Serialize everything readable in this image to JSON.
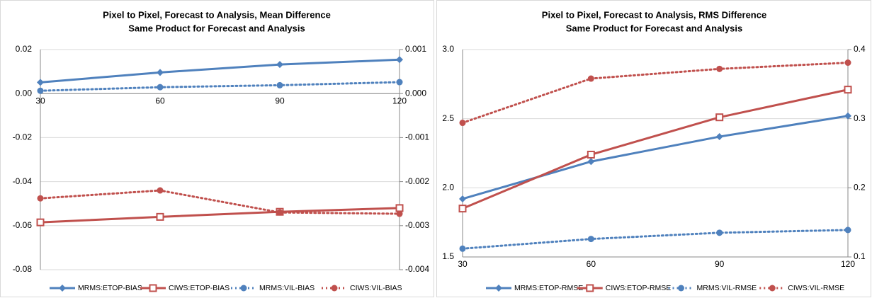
{
  "chart_data": [
    {
      "type": "line",
      "title": "Pixel to Pixel, Forecast to Analysis, Mean Difference",
      "subtitle": "Same Product for Forecast and Analysis",
      "categories": [
        "30",
        "60",
        "90",
        "120"
      ],
      "ylim": [
        -0.08,
        0.02
      ],
      "yticks": [
        -0.08,
        -0.06,
        -0.04,
        -0.02,
        {
          "value": 0,
          "label": "0.00"
        },
        0.02
      ],
      "y2lim": [
        -0.004,
        0.001
      ],
      "y2ticks": [
        -0.004,
        -0.003,
        -0.002,
        -0.001,
        {
          "value": 0,
          "label": "0.000"
        },
        0.001
      ],
      "x_axis_crosses": 0,
      "grid": true,
      "legend": "bottom",
      "series": [
        {
          "name": "MRMS:ETOP-BIAS",
          "color": "#4f81bd",
          "marker": "diamond",
          "line_style": "solid",
          "values": [
            0.0051,
            0.0096,
            0.0132,
            0.0154
          ]
        },
        {
          "name": "CIWS:ETOP-BIAS",
          "color": "#c0504d",
          "marker": "square",
          "line_style": "solid",
          "values": [
            -0.0585,
            -0.056,
            -0.0537,
            -0.052
          ]
        },
        {
          "name": "MRMS:VIL-BIAS",
          "color": "#4f81bd",
          "marker": "circle",
          "line_style": "dotted",
          "axis": "y2",
          "values": [
            6.4e-05,
            0.000145,
            0.00019,
            0.00026
          ]
        },
        {
          "name": "CIWS:VIL-BIAS",
          "color": "#c0504d",
          "marker": "circle",
          "line_style": "dotted",
          "axis": "y2",
          "values": [
            -0.00238,
            -0.0022,
            -0.0027,
            -0.00273
          ]
        }
      ]
    },
    {
      "type": "line",
      "title": "Pixel to Pixel, Forecast to Analysis, RMS Difference",
      "subtitle": "Same Product for Forecast and Analysis",
      "categories": [
        "30",
        "60",
        "90",
        "120"
      ],
      "ylim": [
        1.5,
        3.0
      ],
      "yticks": [
        1.5,
        {
          "value": 2,
          "label": "2.0"
        },
        2.5,
        {
          "value": 3,
          "label": "3.0"
        }
      ],
      "y2lim": [
        0.1,
        0.4
      ],
      "y2ticks": [
        0.1,
        0.2,
        0.3,
        0.4
      ],
      "x_axis_crosses": 1.5,
      "grid": true,
      "legend": "bottom",
      "series": [
        {
          "name": "MRMS:ETOP-RMSE",
          "color": "#4f81bd",
          "marker": "diamond",
          "line_style": "solid",
          "values": [
            1.92,
            2.19,
            2.37,
            2.52
          ]
        },
        {
          "name": "CIWS:ETOP-RMSE",
          "color": "#c0504d",
          "marker": "square",
          "line_style": "solid",
          "values": [
            1.85,
            2.24,
            2.51,
            2.71
          ]
        },
        {
          "name": "MRMS:VIL-RMSE",
          "color": "#4f81bd",
          "marker": "circle",
          "line_style": "dotted",
          "axis": "y2",
          "values": [
            0.112,
            0.126,
            0.135,
            0.139
          ]
        },
        {
          "name": "CIWS:VIL-RMSE",
          "color": "#c0504d",
          "marker": "circle",
          "line_style": "dotted",
          "axis": "y2",
          "values": [
            0.294,
            0.358,
            0.372,
            0.381
          ]
        }
      ]
    }
  ]
}
